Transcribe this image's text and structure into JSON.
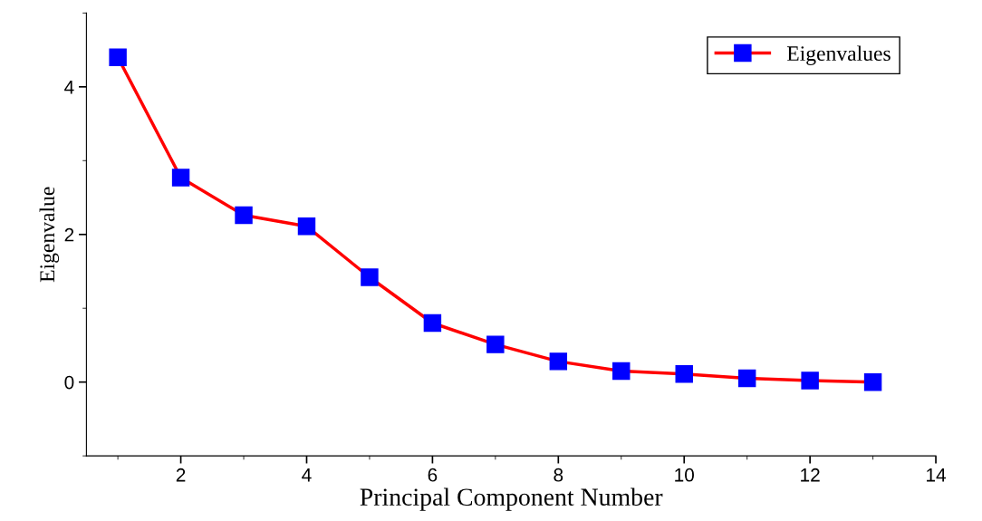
{
  "chart_data": {
    "type": "line",
    "xlabel": "Principal Component Number",
    "ylabel": "Eigenvalue",
    "x": [
      1,
      2,
      3,
      4,
      5,
      6,
      7,
      8,
      9,
      10,
      11,
      12,
      13
    ],
    "series": [
      {
        "name": "Eigenvalues",
        "color": "#ff0000",
        "colors": [
          "#0000ff",
          "#0000ff",
          "#0000ff",
          "#0000ff",
          "#0000ff",
          "#0000ff",
          "#0000ff",
          "#0000ff",
          "#0000ff",
          "#0000ff",
          "#0000ff",
          "#0000ff",
          "#0000ff"
        ],
        "values": [
          4.4,
          2.77,
          2.26,
          2.11,
          1.42,
          0.8,
          0.51,
          0.28,
          0.15,
          0.11,
          0.05,
          0.02,
          0.0
        ]
      }
    ],
    "xlim": [
      0.5,
      14
    ],
    "xticks": [
      2,
      4,
      6,
      8,
      10,
      12,
      14
    ],
    "ylim": [
      -1,
      5
    ],
    "yticks": [
      0,
      2,
      4
    ],
    "marker": "square",
    "line_style": "solid",
    "legend": "top right",
    "grid": false
  }
}
